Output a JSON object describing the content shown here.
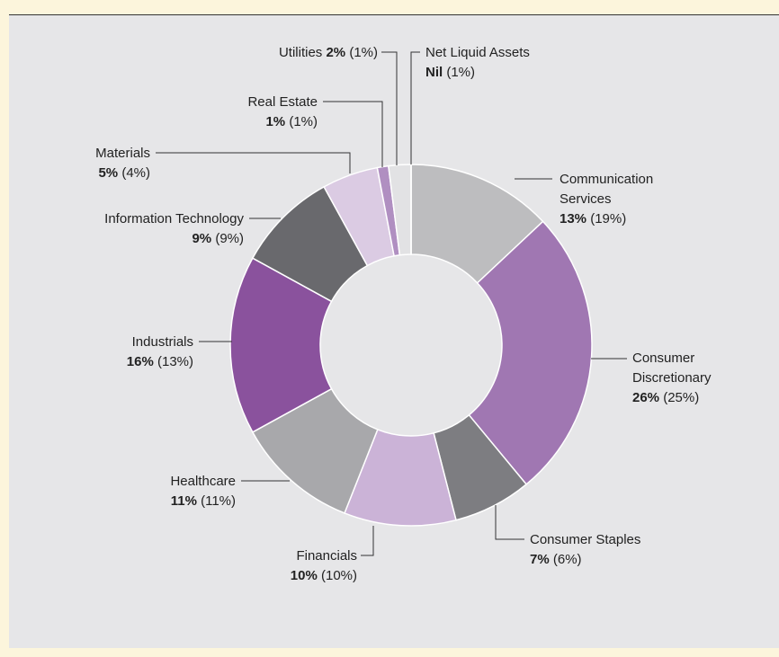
{
  "chart_data": {
    "type": "donut",
    "categories": [
      "Communication Services",
      "Consumer Discretionary",
      "Consumer Staples",
      "Financials",
      "Healthcare",
      "Industrials",
      "Information Technology",
      "Materials",
      "Real Estate",
      "Utilities",
      "Net Liquid Assets"
    ],
    "values": [
      13,
      26,
      7,
      10,
      11,
      16,
      9,
      5,
      1,
      2,
      0
    ],
    "value_labels": [
      "13%",
      "26%",
      "7%",
      "10%",
      "11%",
      "16%",
      "9%",
      "5%",
      "1%",
      "2%",
      "Nil"
    ],
    "prior_values": [
      19,
      25,
      6,
      10,
      11,
      13,
      9,
      4,
      1,
      1,
      1
    ],
    "prior_value_labels": [
      "(19%)",
      "(25%)",
      "(6%)",
      "(10%)",
      "(11%)",
      "(13%)",
      "(9%)",
      "(4%)",
      "(1%)",
      "(1%)",
      "(1%)"
    ],
    "colors": [
      "#bdbdbf",
      "#a077b2",
      "#7d7d81",
      "#cbb3d7",
      "#a8a8ab",
      "#8a529d",
      "#69696d",
      "#dbcbe3",
      "#b08fc1",
      "#e2e2e4",
      "#d2d2d4"
    ]
  }
}
